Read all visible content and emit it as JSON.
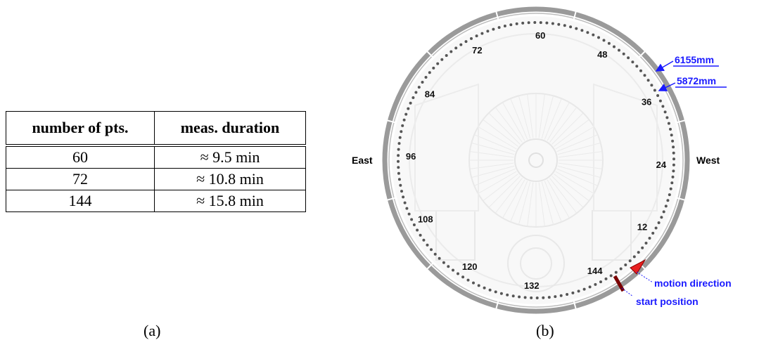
{
  "table": {
    "headers": [
      "number of pts.",
      "meas. duration"
    ],
    "rows": [
      [
        "60",
        "≈ 9.5 min"
      ],
      [
        "72",
        "≈ 10.8 min"
      ],
      [
        "144",
        "≈ 15.8 min"
      ]
    ]
  },
  "captions": {
    "a": "(a)",
    "b": "(b)"
  },
  "diagram": {
    "directions": {
      "east": "East",
      "west": "West"
    },
    "point_labels": [
      "12",
      "24",
      "36",
      "48",
      "60",
      "72",
      "84",
      "96",
      "108",
      "120",
      "132",
      "144"
    ],
    "radii": {
      "outer": "6155mm",
      "inner": "5872mm"
    },
    "annotations": {
      "motion": "motion direction",
      "start": "start position"
    },
    "points_total": 144,
    "colors": {
      "annotation": "#1a1aff",
      "arrow": "#e82020",
      "start_marker": "#7a0000",
      "ring": "#9a9a9a"
    }
  }
}
